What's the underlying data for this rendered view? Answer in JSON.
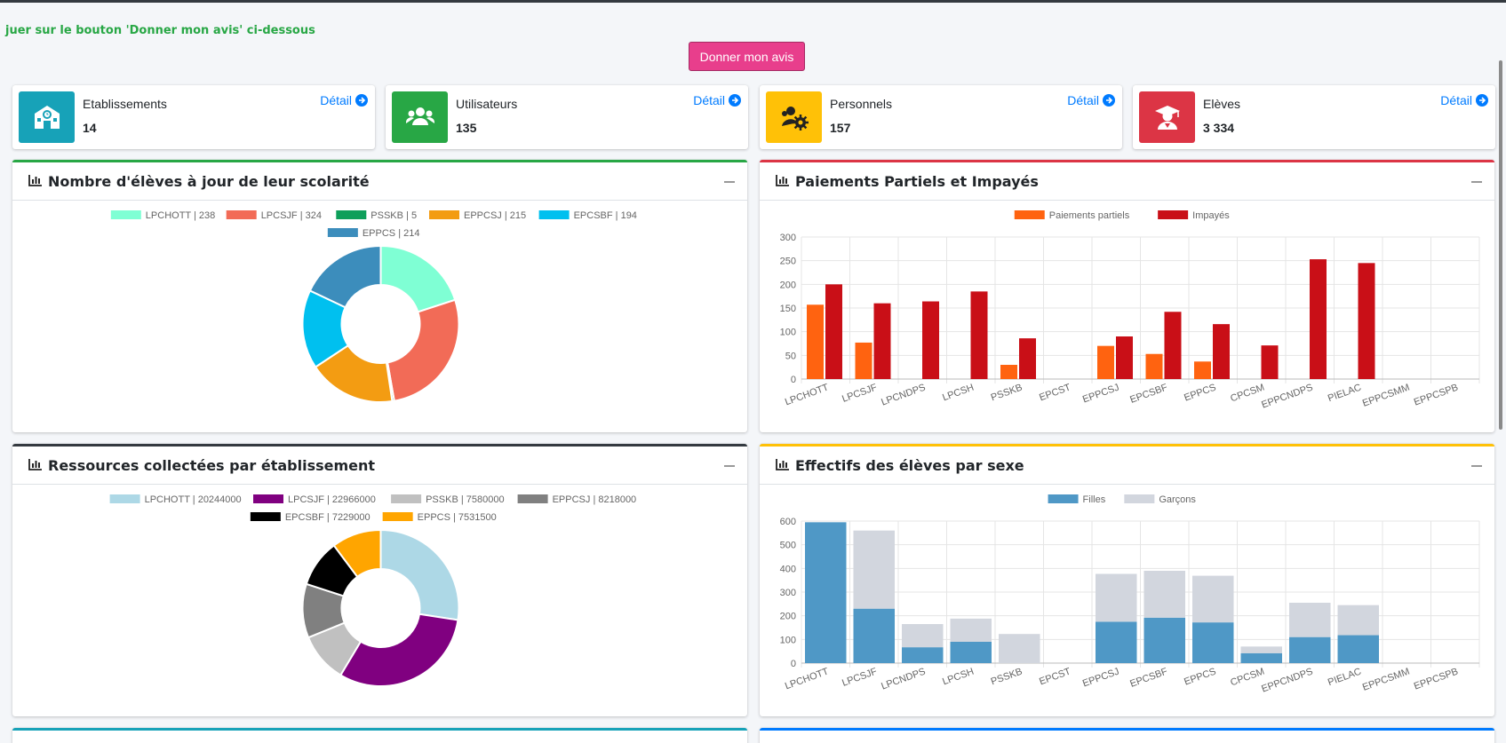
{
  "notice": "juer sur le bouton 'Donner mon avis' ci-dessous",
  "feedback_button": "Donner mon avis",
  "info_boxes": [
    {
      "label": "Etablissements",
      "value": "14",
      "link": "Détail",
      "color": "#17a2b8",
      "icon": "school-icon"
    },
    {
      "label": "Utilisateurs",
      "value": "135",
      "link": "Détail",
      "color": "#28a745",
      "icon": "users-icon"
    },
    {
      "label": "Personnels",
      "value": "157",
      "link": "Détail",
      "color": "#ffc107",
      "icon": "users-cog-icon"
    },
    {
      "label": "Elèves",
      "value": "3 334",
      "link": "Détail",
      "color": "#dc3545",
      "icon": "graduate-icon"
    }
  ],
  "cards": {
    "students": {
      "title": "Nombre d'élèves à jour de leur scolarité",
      "border": "#28a745"
    },
    "payments": {
      "title": "Paiements Partiels et Impayés",
      "border": "#dc3545"
    },
    "resources": {
      "title": "Ressources collectées par établissement",
      "border": "#343a40"
    },
    "gender": {
      "title": "Effectifs des élèves par sexe",
      "border": "#ffc107"
    }
  },
  "chart_data": [
    {
      "type": "pie",
      "labels": [
        "LPCHOTT | 238",
        "LPCSJF | 324",
        "PSSKB | 5",
        "EPPCSJ | 215",
        "EPCSBF | 194",
        "EPPCS | 214"
      ],
      "values": [
        238,
        324,
        5,
        215,
        194,
        214
      ],
      "colors": [
        "#7fffd4",
        "#f26b57",
        "#0e9f5a",
        "#f39c12",
        "#00c0ef",
        "#3c8dbc"
      ],
      "legend": "top"
    },
    {
      "type": "bar",
      "categories": [
        "LPCHOTT",
        "LPCSJF",
        "LPCNDPS",
        "LPCSH",
        "PSSKB",
        "EPCST",
        "EPPCSJ",
        "EPCSBF",
        "EPPCS",
        "CPCSM",
        "EPPCNDPS",
        "PIELAC",
        "EPPCSMM",
        "EPPCSPB"
      ],
      "series": [
        {
          "name": "Paiements partiels",
          "color": "#ff6310",
          "values": [
            157,
            77,
            0,
            0,
            30,
            0,
            70,
            53,
            37,
            0,
            0,
            0,
            0,
            0
          ]
        },
        {
          "name": "Impayés",
          "color": "#c90f17",
          "values": [
            200,
            160,
            164,
            185,
            86,
            0,
            90,
            142,
            116,
            71,
            253,
            245,
            0,
            0
          ]
        }
      ],
      "ylim": [
        0,
        300
      ],
      "yticks": [
        0,
        50,
        100,
        150,
        200,
        250,
        300
      ],
      "legend": "top",
      "grid": true
    },
    {
      "type": "pie",
      "labels": [
        "LPCHOTT | 20244000",
        "LPCSJF | 22966000",
        "PSSKB | 7580000",
        "EPPCSJ | 8218000",
        "EPCSBF | 7229000",
        "EPPCS | 7531500"
      ],
      "values": [
        20244000,
        22966000,
        7580000,
        8218000,
        7229000,
        7531500
      ],
      "colors": [
        "#add8e6",
        "#800080",
        "#c0c0c0",
        "#808080",
        "#000000",
        "#ffa500"
      ],
      "legend": "top"
    },
    {
      "type": "bar",
      "stacked": true,
      "categories": [
        "LPCHOTT",
        "LPCSJF",
        "LPCNDPS",
        "LPCSH",
        "PSSKB",
        "EPCST",
        "EPPCSJ",
        "EPCSBF",
        "EPPCS",
        "CPCSM",
        "EPPCNDPS",
        "PIELAC",
        "EPPCSMM",
        "EPPCSPB"
      ],
      "series": [
        {
          "name": "Filles",
          "color": "#4f98c6",
          "values": [
            595,
            230,
            67,
            90,
            0,
            0,
            175,
            192,
            172,
            42,
            110,
            118,
            0,
            0
          ]
        },
        {
          "name": "Garçons",
          "color": "#d2d6de",
          "values": [
            0,
            330,
            98,
            98,
            123,
            0,
            202,
            198,
            197,
            28,
            145,
            127,
            0,
            0
          ]
        }
      ],
      "ylim": [
        0,
        600
      ],
      "yticks": [
        0,
        100,
        200,
        300,
        400,
        500,
        600
      ],
      "legend": "top",
      "grid": true
    }
  ]
}
